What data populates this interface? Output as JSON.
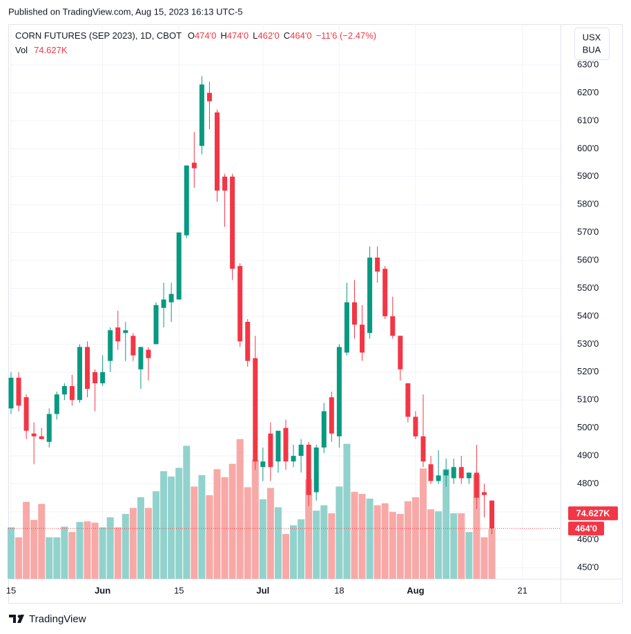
{
  "chart_data": {
    "type": "candlestick",
    "published": "Published on TradingView.com, Aug 15, 2023 16:13 UTC-5",
    "title": "CORN FUTURES (SEP 2023), 1D, CBOT",
    "legend": {
      "open_label": "O",
      "open": "474'0",
      "high_label": "H",
      "high": "474'0",
      "low_label": "L",
      "low": "462'0",
      "close_label": "C",
      "close": "464'0",
      "change": "−11'6 (−2.47%)",
      "volume_label": "Vol",
      "volume": "74.627K"
    },
    "currency": [
      "USX",
      "BUA"
    ],
    "brand": "TradingView",
    "last_price_label": "464'0",
    "last_volume_label": "74.627K",
    "open": [
      507,
      518,
      511,
      498,
      497,
      495,
      505,
      512,
      515,
      510,
      529,
      520,
      516,
      524,
      536,
      534,
      533,
      521,
      528,
      530,
      543,
      545,
      546,
      569,
      595,
      601,
      620,
      613,
      590,
      590,
      558,
      538,
      525,
      486,
      498,
      488,
      500,
      488,
      490,
      494,
      477,
      493,
      511,
      497,
      527,
      545,
      537,
      534,
      561,
      557,
      540,
      533,
      516,
      504,
      497,
      487,
      481,
      483,
      482,
      486,
      482,
      484,
      477,
      474
    ],
    "high": [
      520,
      520,
      512,
      502,
      500,
      507,
      513,
      516,
      519,
      530,
      531,
      521,
      526,
      536,
      542,
      538,
      534,
      529,
      529,
      545,
      552,
      552,
      570,
      594,
      606,
      626,
      624,
      614,
      591,
      591,
      559,
      539,
      533,
      493,
      502,
      499,
      503,
      494,
      496,
      495,
      494,
      509,
      513,
      530,
      552,
      553,
      544,
      565,
      565,
      558,
      547,
      533,
      516,
      506,
      512,
      490,
      492,
      489,
      489,
      490,
      484,
      494,
      480,
      474
    ],
    "low": [
      505,
      506,
      496,
      487,
      496,
      493,
      503,
      510,
      508,
      509,
      511,
      506,
      515,
      520,
      528,
      524,
      524,
      514,
      517,
      530,
      536,
      538,
      546,
      568,
      586,
      598,
      607,
      581,
      572,
      553,
      529,
      522,
      485,
      481,
      481,
      484,
      485,
      486,
      484,
      472,
      474,
      491,
      495,
      493,
      526,
      532,
      524,
      532,
      552,
      539,
      532,
      517,
      502,
      496,
      486,
      480,
      480,
      479,
      480,
      480,
      480,
      471,
      468,
      462
    ],
    "close": [
      518,
      508,
      499,
      497,
      496,
      505,
      512,
      515,
      510,
      529,
      514,
      516,
      520,
      535,
      531,
      535,
      526,
      529,
      525,
      544,
      546,
      548,
      570,
      594,
      593,
      623,
      617,
      585,
      585,
      557,
      531,
      524,
      488,
      488,
      486,
      499,
      488,
      490,
      494,
      476,
      493,
      506,
      498,
      529,
      545,
      537,
      527,
      561,
      556,
      540,
      533,
      521,
      504,
      497,
      488,
      481,
      483,
      485,
      486,
      482,
      484,
      475,
      476,
      464
    ],
    "volume": [
      77,
      62,
      115,
      88,
      112,
      62,
      62,
      78,
      70,
      85,
      86,
      84,
      77,
      92,
      77,
      97,
      106,
      122,
      106,
      131,
      161,
      153,
      166,
      199,
      138,
      155,
      125,
      164,
      152,
      172,
      209,
      137,
      178,
      119,
      136,
      107,
      67,
      80,
      89,
      149,
      102,
      110,
      98,
      138,
      202,
      130,
      127,
      120,
      110,
      113,
      100,
      97,
      116,
      122,
      165,
      104,
      101,
      164,
      98,
      98,
      70,
      156,
      62,
      74.627
    ],
    "up_color": "#089981",
    "down_color": "#f23645",
    "volume_up_color": "#92d2cc",
    "volume_down_color": "#f7a9a7",
    "ylim": [
      446,
      644.6
    ],
    "yticks": [
      {
        "value": 450,
        "label": "450'0"
      },
      {
        "value": 460,
        "label": "460'0"
      },
      {
        "value": 470,
        "label": "470'0"
      },
      {
        "value": 480,
        "label": "480'0"
      },
      {
        "value": 490,
        "label": "490'0"
      },
      {
        "value": 500,
        "label": "500'0"
      },
      {
        "value": 510,
        "label": "510'0"
      },
      {
        "value": 520,
        "label": "520'0"
      },
      {
        "value": 530,
        "label": "530'0"
      },
      {
        "value": 540,
        "label": "540'0"
      },
      {
        "value": 550,
        "label": "550'0"
      },
      {
        "value": 560,
        "label": "560'0"
      },
      {
        "value": 570,
        "label": "570'0"
      },
      {
        "value": 580,
        "label": "580'0"
      },
      {
        "value": 590,
        "label": "590'0"
      },
      {
        "value": 600,
        "label": "600'0"
      },
      {
        "value": 610,
        "label": "610'0"
      },
      {
        "value": 620,
        "label": "620'0"
      },
      {
        "value": 630,
        "label": "630'0"
      }
    ],
    "volume_ylim": [
      0,
      830
    ],
    "xlim": [
      -0.36,
      72
    ],
    "xticks": [
      {
        "value": 0,
        "label": "15"
      },
      {
        "value": 12,
        "label": "Jun"
      },
      {
        "value": 22,
        "label": "15"
      },
      {
        "value": 33,
        "label": "Jul"
      },
      {
        "value": 43,
        "label": "18"
      },
      {
        "value": 53,
        "label": "Aug"
      },
      {
        "value": 67,
        "label": "21"
      }
    ],
    "grid": true
  }
}
